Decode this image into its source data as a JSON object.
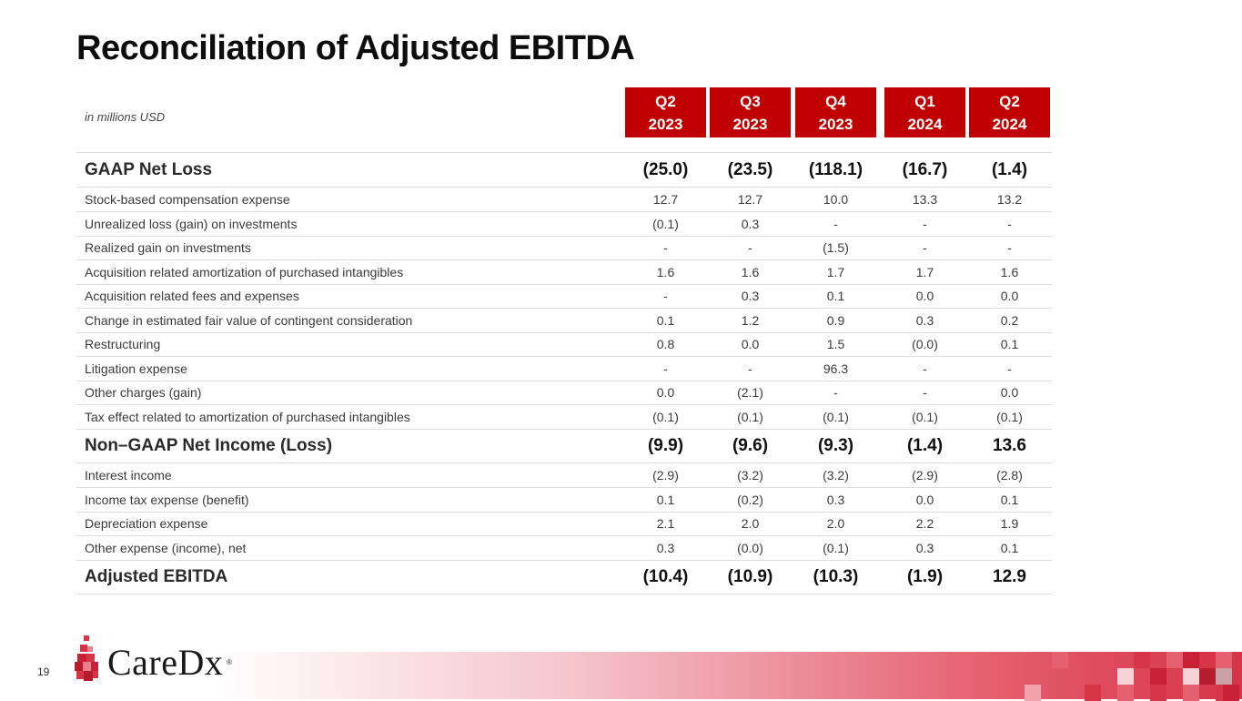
{
  "title": "Reconciliation of Adjusted EBITDA",
  "units": "in millions USD",
  "columns": [
    {
      "q": "Q2",
      "year": "2023"
    },
    {
      "q": "Q3",
      "year": "2023"
    },
    {
      "q": "Q4",
      "year": "2023"
    },
    {
      "q": "Q1",
      "year": "2024"
    },
    {
      "q": "Q2",
      "year": "2024"
    }
  ],
  "rows": [
    {
      "label": "GAAP Net Loss",
      "bold": true,
      "values": [
        "(25.0)",
        "(23.5)",
        "(118.1)",
        "(16.7)",
        "(1.4)"
      ]
    },
    {
      "label": "Stock-based compensation expense",
      "values": [
        "12.7",
        "12.7",
        "10.0",
        "13.3",
        "13.2"
      ]
    },
    {
      "label": "Unrealized loss (gain) on investments",
      "values": [
        "(0.1)",
        "0.3",
        "-",
        "-",
        "-"
      ]
    },
    {
      "label": "Realized gain on investments",
      "values": [
        "-",
        "-",
        "(1.5)",
        "-",
        "-"
      ]
    },
    {
      "label": "Acquisition related amortization of purchased intangibles",
      "values": [
        "1.6",
        "1.6",
        "1.7",
        "1.7",
        "1.6"
      ]
    },
    {
      "label": "Acquisition related fees and expenses",
      "values": [
        "-",
        "0.3",
        "0.1",
        "0.0",
        "0.0"
      ]
    },
    {
      "label": "Change in estimated fair value of contingent consideration",
      "values": [
        "0.1",
        "1.2",
        "0.9",
        "0.3",
        "0.2"
      ]
    },
    {
      "label": "Restructuring",
      "values": [
        "0.8",
        "0.0",
        "1.5",
        "(0.0)",
        "0.1"
      ]
    },
    {
      "label": "Litigation expense",
      "values": [
        "-",
        "-",
        "96.3",
        "-",
        "-"
      ]
    },
    {
      "label": "Other charges (gain)",
      "values": [
        "0.0",
        "(2.1)",
        "-",
        "-",
        "0.0"
      ]
    },
    {
      "label": "Tax effect related to amortization of purchased intangibles",
      "values": [
        "(0.1)",
        "(0.1)",
        "(0.1)",
        "(0.1)",
        "(0.1)"
      ]
    },
    {
      "label": "Non–GAAP Net Income (Loss)",
      "bold": true,
      "values": [
        "(9.9)",
        "(9.6)",
        "(9.3)",
        "(1.4)",
        "13.6"
      ]
    },
    {
      "label": "Interest income",
      "values": [
        "(2.9)",
        "(3.2)",
        "(3.2)",
        "(2.9)",
        "(2.8)"
      ]
    },
    {
      "label": "Income tax expense (benefit)",
      "values": [
        "0.1",
        "(0.2)",
        "0.3",
        "0.0",
        "0.1"
      ]
    },
    {
      "label": "Depreciation expense",
      "values": [
        "2.1",
        "2.0",
        "2.0",
        "2.2",
        "1.9"
      ]
    },
    {
      "label": "Other expense (income), net",
      "values": [
        "0.3",
        "(0.0)",
        "(0.1)",
        "0.3",
        "0.1"
      ]
    },
    {
      "label": "Adjusted EBITDA",
      "bold": true,
      "values": [
        "(10.4)",
        "(10.9)",
        "(10.3)",
        "(1.9)",
        "12.9"
      ]
    }
  ],
  "footer": {
    "page_number": "19",
    "logo_text": "CareDx",
    "logo_mark": "®"
  },
  "colors": {
    "header_bg": "#c00000",
    "accent": "#d63447"
  }
}
